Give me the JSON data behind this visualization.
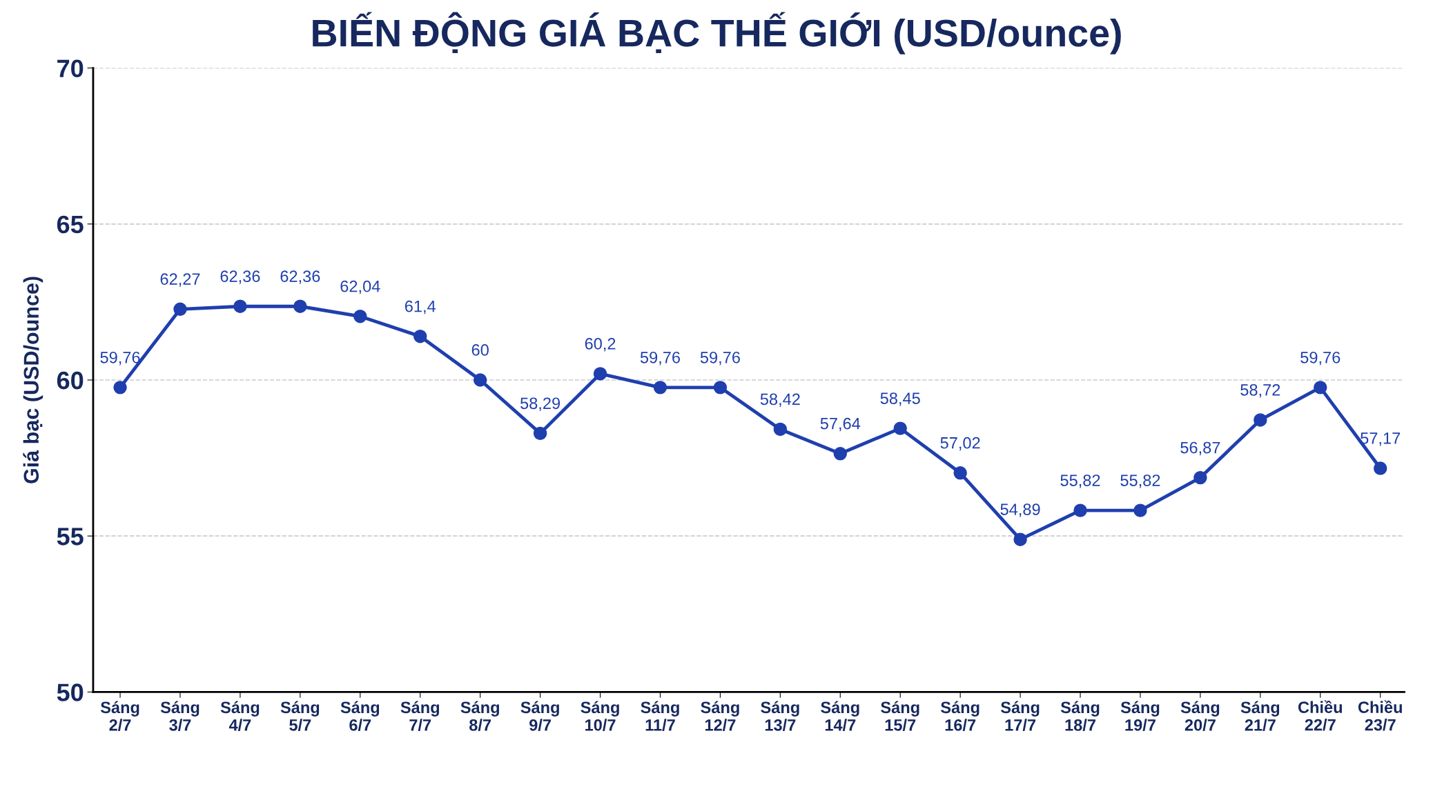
{
  "chart_data": {
    "type": "line",
    "title": "BIẾN ĐỘNG GIÁ BẠC THẾ GIỚI (USD/ounce)",
    "ylabel": "Giá bạc (USD/ounce)",
    "categories": [
      "Sáng\n2/7",
      "Sáng\n3/7",
      "Sáng\n4/7",
      "Sáng\n5/7",
      "Sáng\n6/7",
      "Sáng\n7/7",
      "Sáng\n8/7",
      "Sáng\n9/7",
      "Sáng\n10/7",
      "Sáng\n11/7",
      "Sáng\n12/7",
      "Sáng\n13/7",
      "Sáng\n14/7",
      "Sáng\n15/7",
      "Sáng\n16/7",
      "Sáng\n17/7",
      "Sáng\n18/7",
      "Sáng\n19/7",
      "Sáng\n20/7",
      "Sáng\n21/7",
      "Chiều\n22/7",
      "Chiều\n23/7"
    ],
    "series": [
      {
        "color": "#1f3fae",
        "values": [
          59.76,
          62.27,
          62.36,
          62.36,
          62.04,
          61.4,
          60,
          58.29,
          60.2,
          59.76,
          59.76,
          58.42,
          57.64,
          58.45,
          57.02,
          54.89,
          55.82,
          55.82,
          56.87,
          58.72,
          59.76,
          57.17
        ],
        "value_labels": [
          "59,76",
          "62,27",
          "62,36",
          "62,36",
          "62,04",
          "61,4",
          "60",
          "58,29",
          "60,2",
          "59,76",
          "59,76",
          "58,42",
          "57,64",
          "58,45",
          "57,02",
          "54,89",
          "55,82",
          "55,82",
          "56,87",
          "58,72",
          "59,76",
          "57,17"
        ]
      }
    ],
    "ylim": [
      50,
      70
    ],
    "yticks": [
      50,
      55,
      60,
      65,
      70
    ],
    "grid": "y",
    "marker": "circle",
    "line_style": "solid",
    "legend": false
  }
}
